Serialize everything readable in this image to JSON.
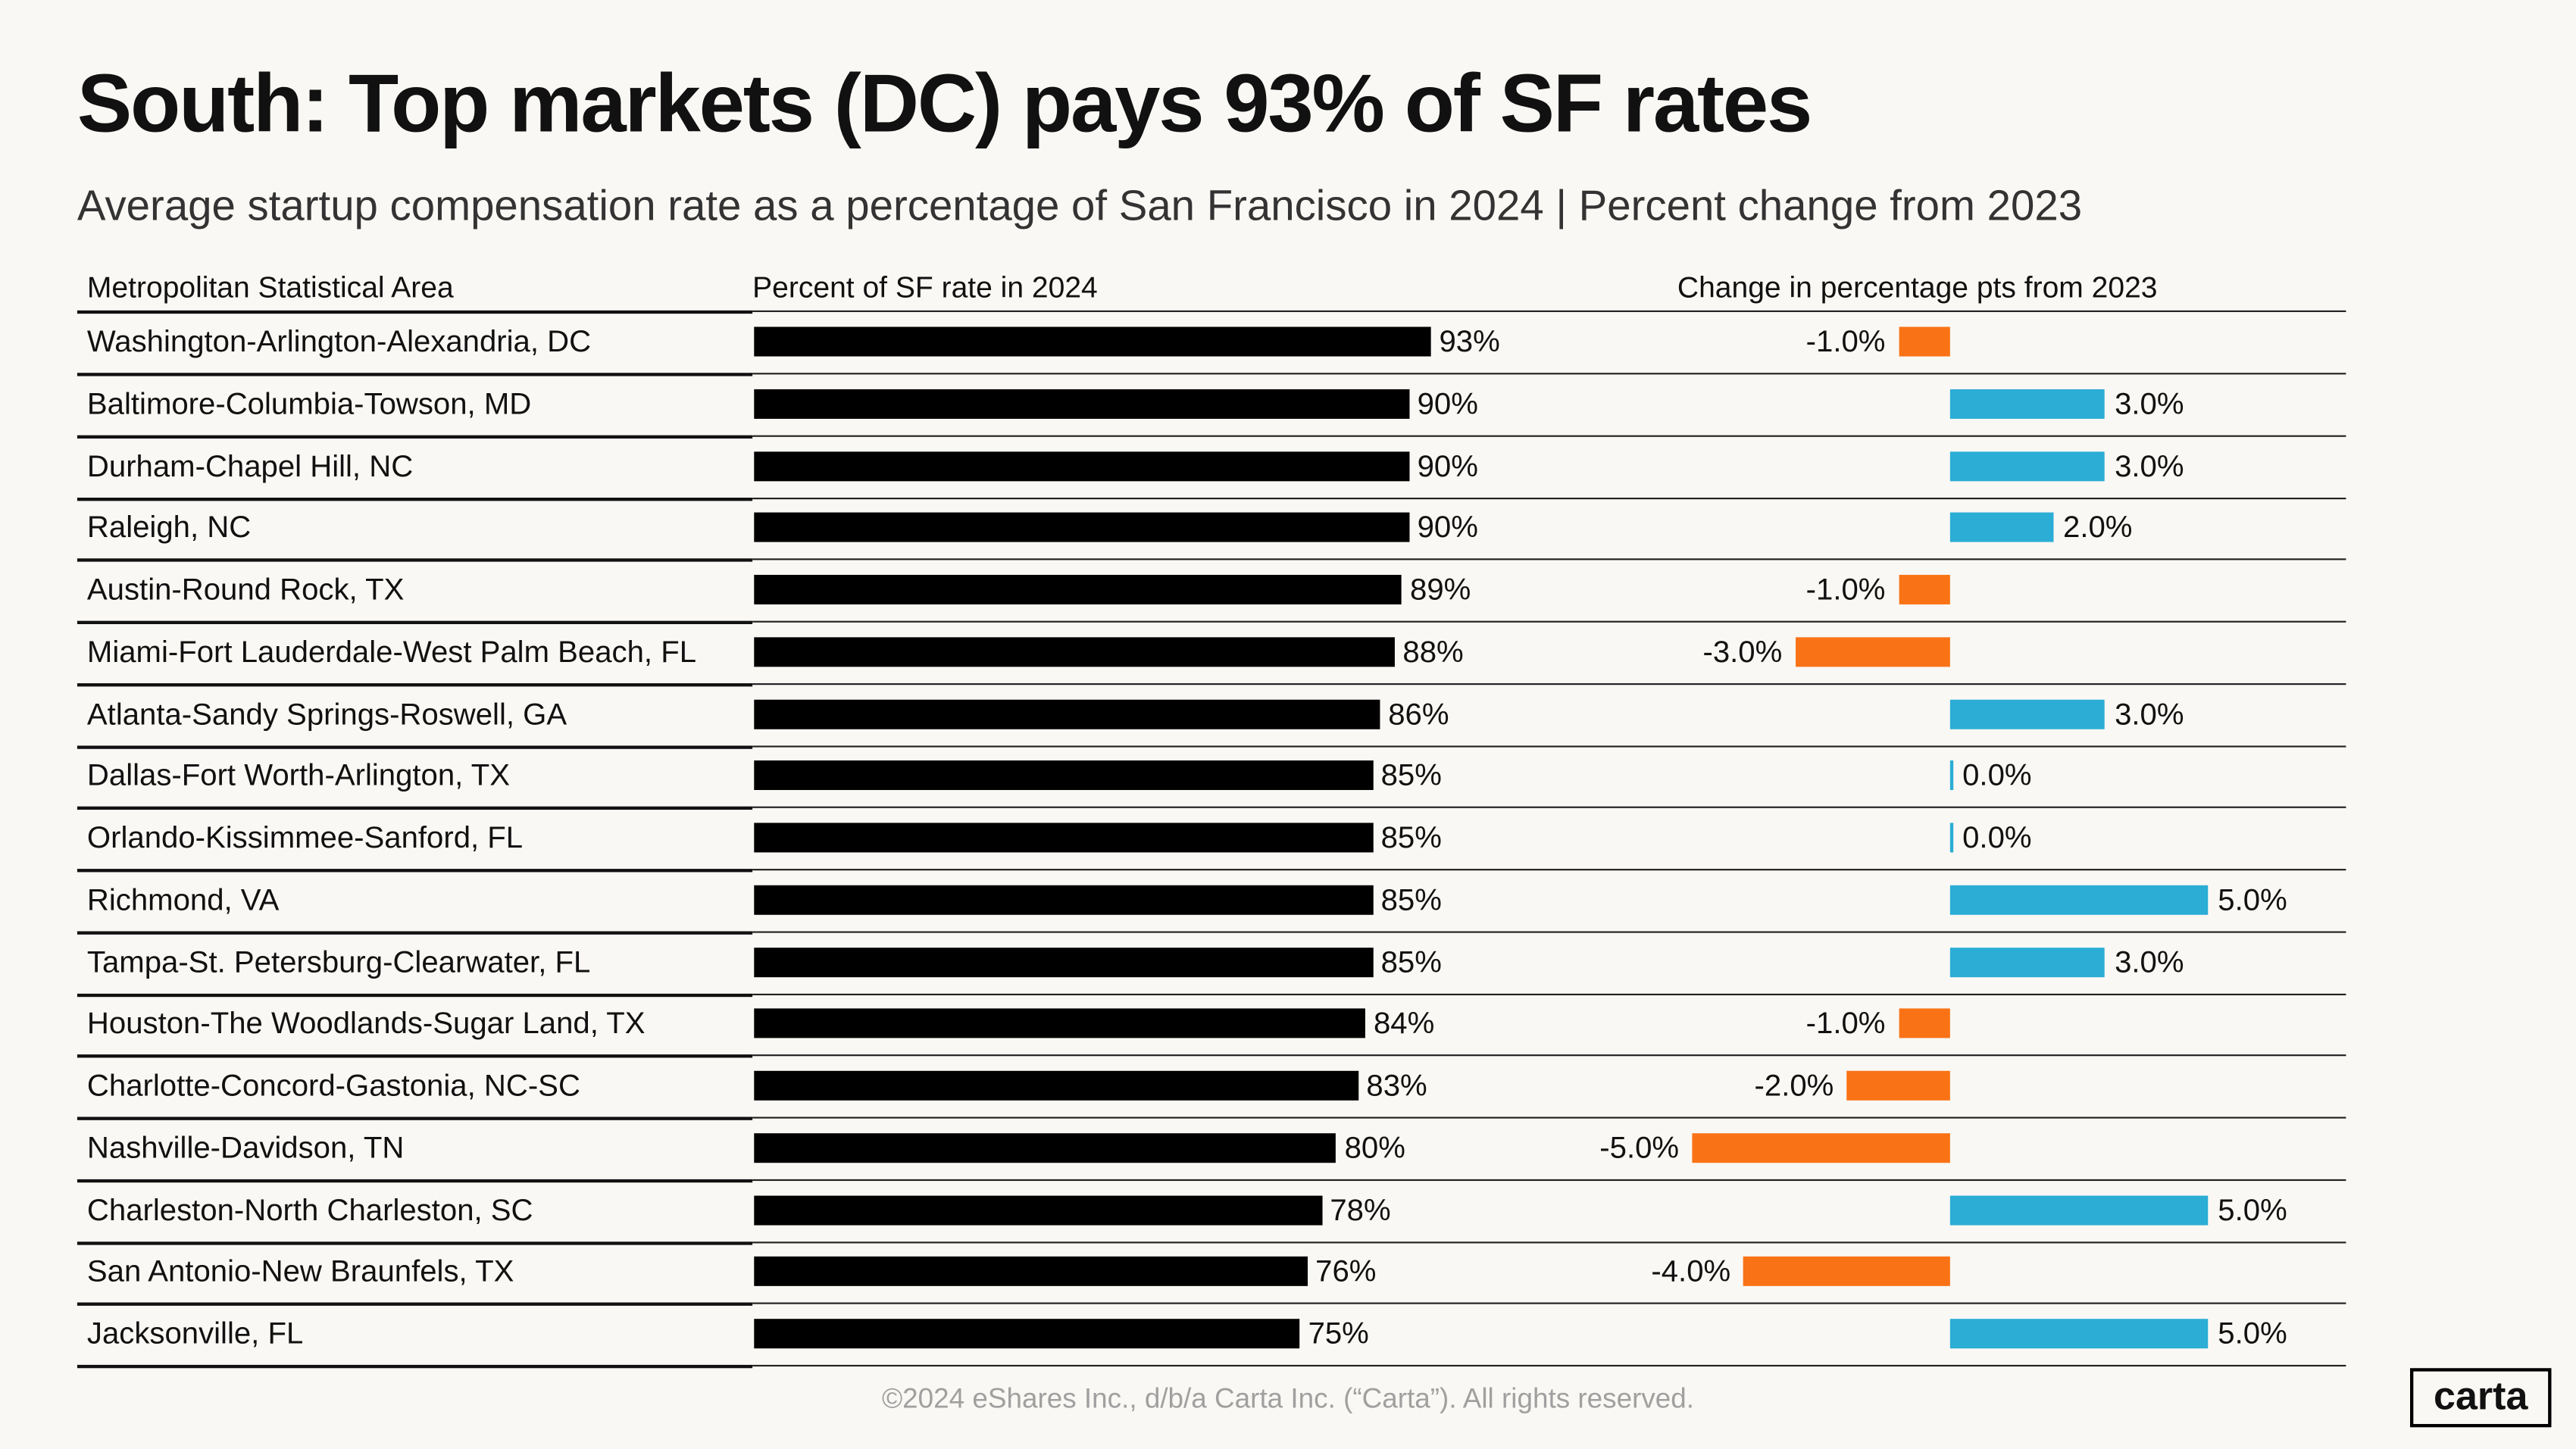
{
  "title": "South: Top markets (DC) pays 93% of SF rates",
  "subtitle": "Average startup compensation rate as a percentage of San Francisco in 2024 | Percent change from 2023",
  "footer": "©2024 eShares Inc., d/b/a Carta Inc. (“Carta”). All rights reserved.",
  "logo": "carta",
  "chart_data": {
    "type": "bar",
    "columns": [
      "Metropolitan Statistical Area",
      "Percent of SF rate in 2024",
      "Change in percentage pts from 2023"
    ],
    "categories": [
      "Washington-Arlington-Alexandria, DC",
      "Baltimore-Columbia-Towson, MD",
      "Durham-Chapel Hill, NC",
      "Raleigh, NC",
      "Austin-Round Rock, TX",
      "Miami-Fort Lauderdale-West Palm Beach, FL",
      "Atlanta-Sandy Springs-Roswell, GA",
      "Dallas-Fort Worth-Arlington, TX",
      "Orlando-Kissimmee-Sanford, FL",
      "Richmond, VA",
      "Tampa-St. Petersburg-Clearwater, FL",
      "Houston-The Woodlands-Sugar Land, TX",
      "Charlotte-Concord-Gastonia, NC-SC",
      "Nashville-Davidson, TN",
      "Charleston-North Charleston, SC",
      "San Antonio-New Braunfels, TX",
      "Jacksonville, FL"
    ],
    "series": [
      {
        "values": [
          93,
          90,
          90,
          90,
          89,
          88,
          86,
          85,
          85,
          85,
          85,
          84,
          83,
          80,
          78,
          76,
          75
        ],
        "labels": [
          "93%",
          "90%",
          "90%",
          "90%",
          "89%",
          "88%",
          "86%",
          "85%",
          "85%",
          "85%",
          "85%",
          "84%",
          "83%",
          "80%",
          "78%",
          "76%",
          "75%"
        ]
      },
      {
        "values": [
          -1,
          3,
          3,
          2,
          -1,
          -3,
          3,
          0,
          0,
          5,
          3,
          -1,
          -2,
          -5,
          5,
          -4,
          5
        ],
        "labels": [
          "-1.0%",
          "3.0%",
          "3.0%",
          "2.0%",
          "-1.0%",
          "-3.0%",
          "3.0%",
          "0.0%",
          "0.0%",
          "5.0%",
          "3.0%",
          "-1.0%",
          "-2.0%",
          "-5.0%",
          "5.0%",
          "-4.0%",
          "5.0%"
        ]
      }
    ],
    "colors": {
      "bar": "#000000",
      "positive": "#2badd5",
      "negative": "#f97316"
    }
  }
}
